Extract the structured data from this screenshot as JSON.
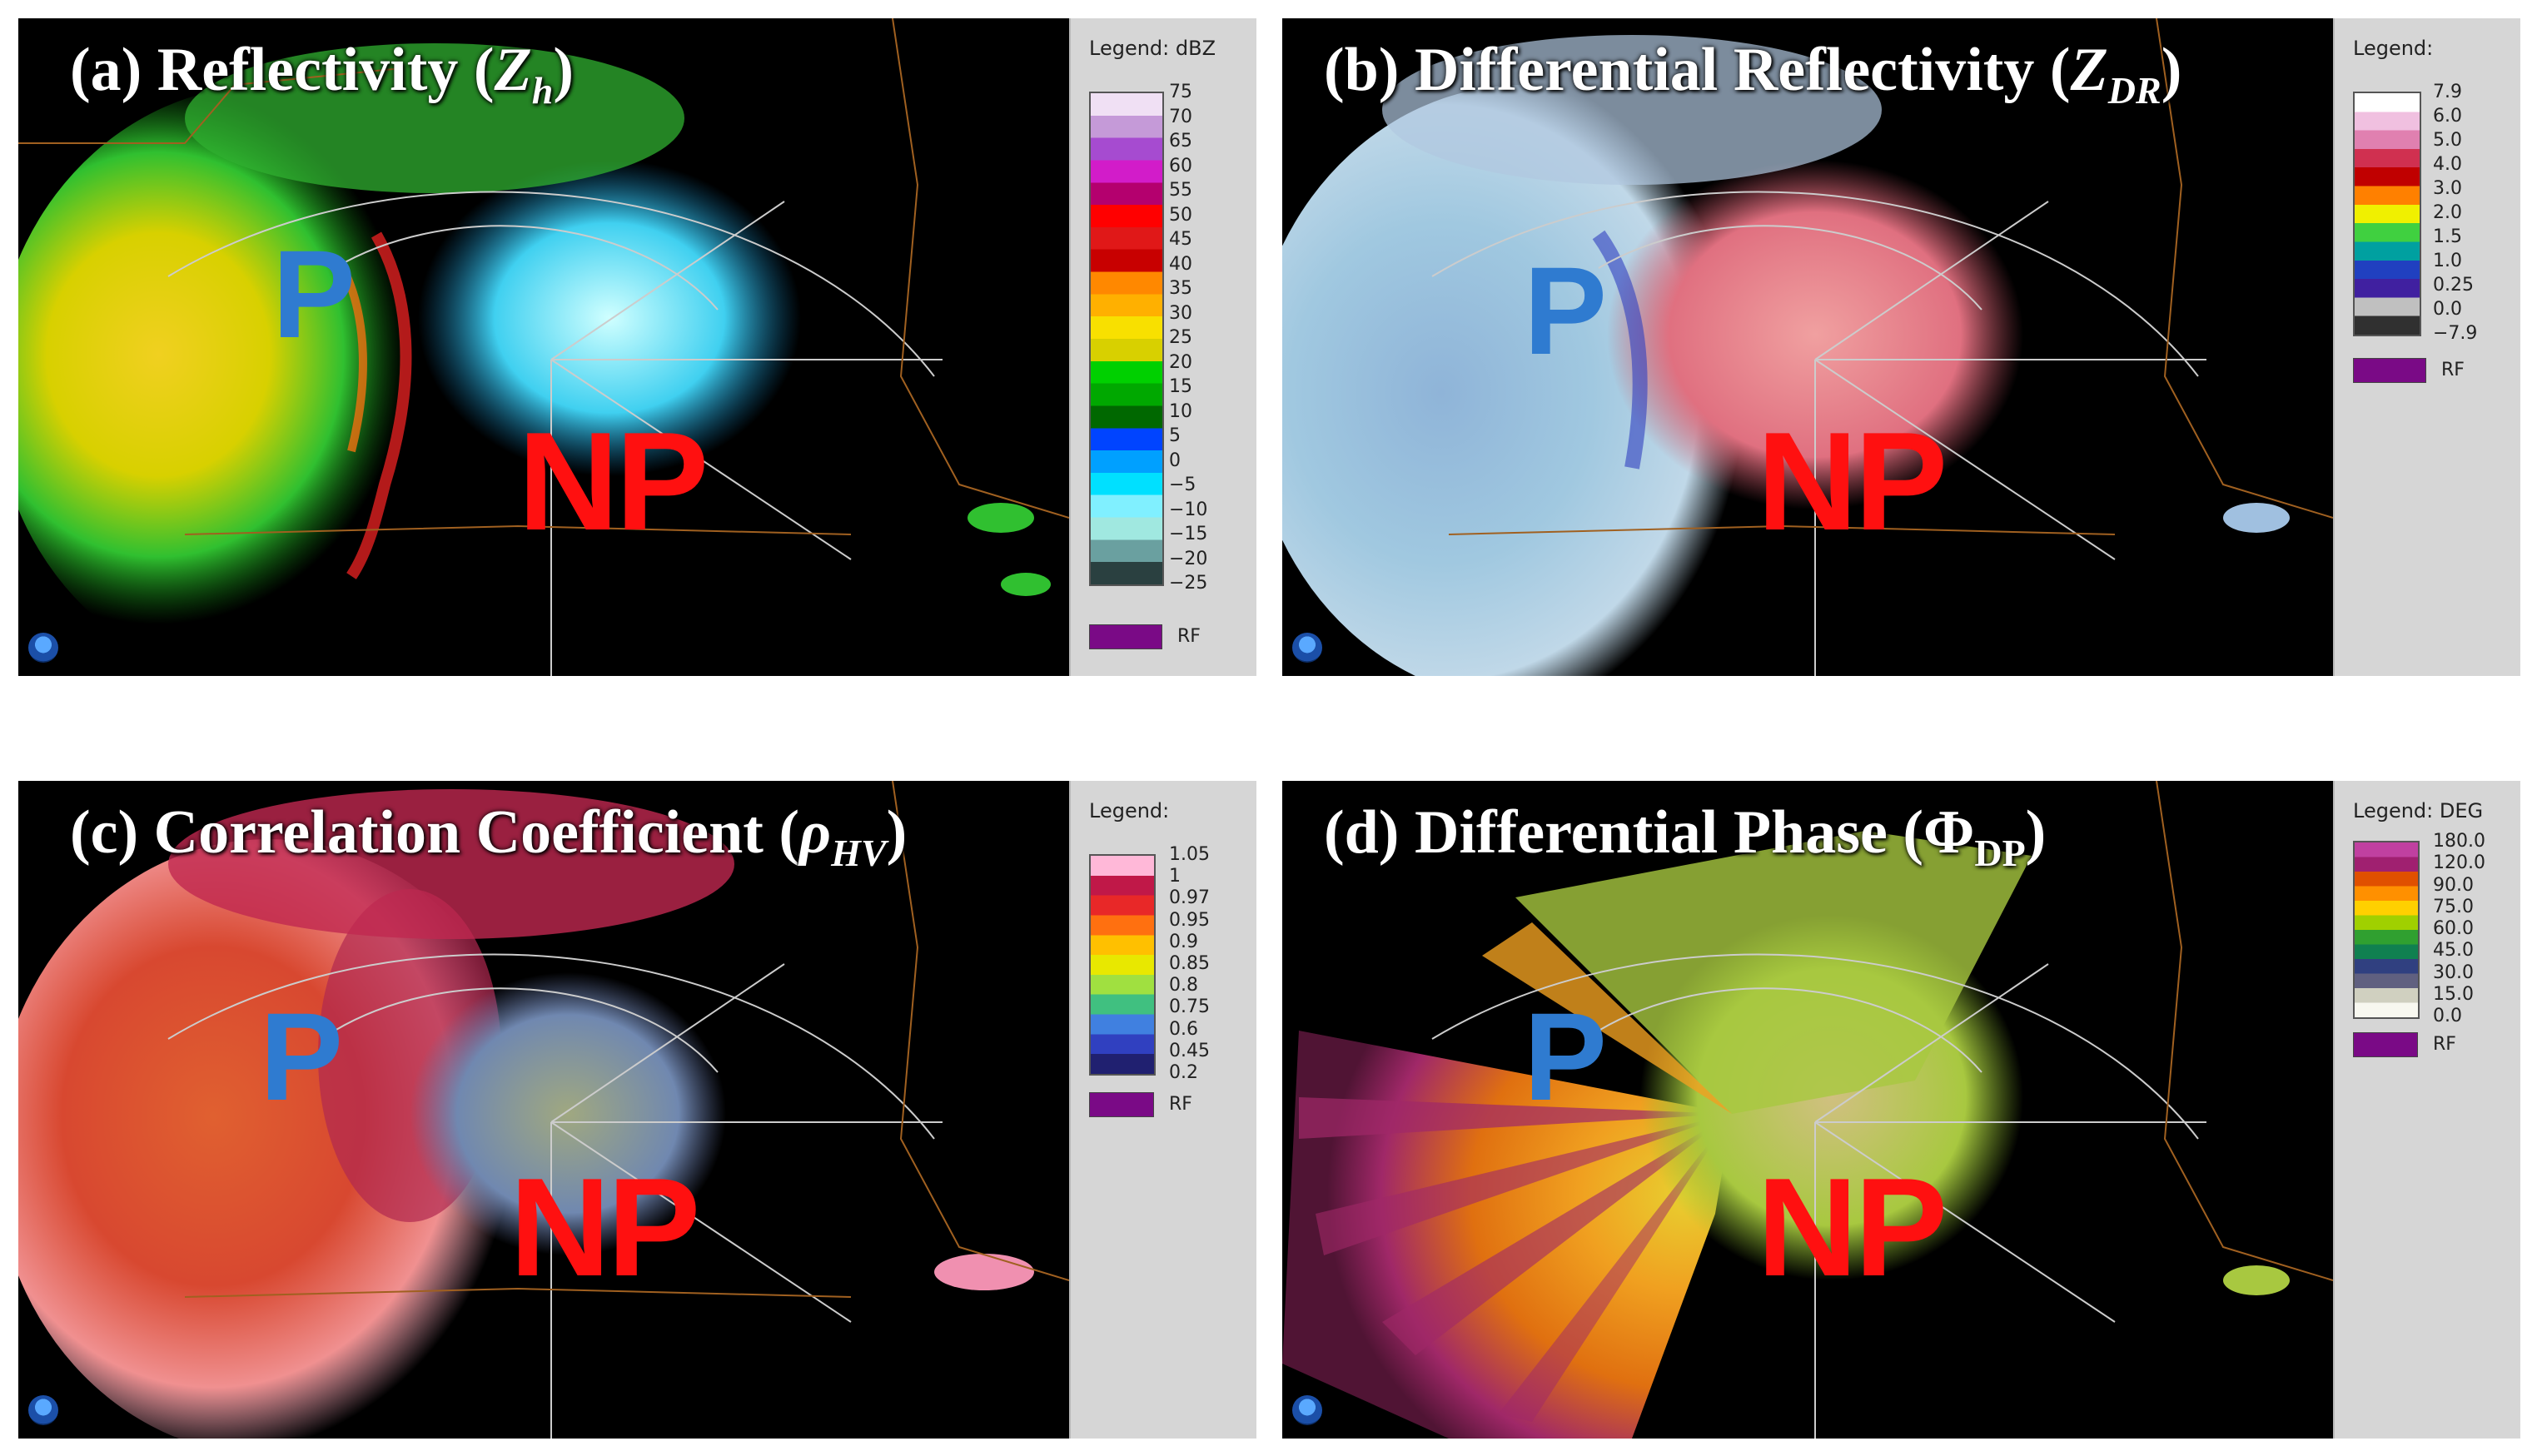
{
  "panels": [
    {
      "id": "a",
      "title_prefix": "(a) Reflectivity (",
      "title_symbol": "Z",
      "title_sub": "h",
      "title_suffix": ")",
      "region_p": "P",
      "region_np": "NP",
      "legend_title": "Legend: dBZ",
      "ticks": [
        "75",
        "70",
        "65",
        "60",
        "55",
        "50",
        "45",
        "40",
        "35",
        "30",
        "25",
        "20",
        "15",
        "10",
        "5",
        "0",
        "−5",
        "−10",
        "−15",
        "−20",
        "−25"
      ],
      "colors": [
        "#f0e0f4",
        "#c59ad8",
        "#a64bd0",
        "#d21cc9",
        "#b4006e",
        "#ff0000",
        "#e01818",
        "#c80000",
        "#ff8800",
        "#ffb000",
        "#f8e000",
        "#d8d000",
        "#00d000",
        "#00a800",
        "#006800",
        "#0044ff",
        "#00a0ff",
        "#00e0ff",
        "#80f0ff",
        "#a0e8e0",
        "#6aa0a0",
        "#2a4040"
      ],
      "rf_label": "RF"
    },
    {
      "id": "b",
      "title_prefix": "(b) Differential Reflectivity (",
      "title_symbol": "Z",
      "title_sub": "DR",
      "title_suffix": ")",
      "region_p": "P",
      "region_np": "NP",
      "legend_title": "Legend:",
      "ticks": [
        "7.9",
        "6.0",
        "5.0",
        "4.0",
        "3.0",
        "2.0",
        "1.5",
        "1.0",
        "0.25",
        "0.0",
        "−7.9"
      ],
      "colors": [
        "#ffffff",
        "#f0c0e0",
        "#e080b0",
        "#d03050",
        "#c00000",
        "#ff8000",
        "#f0f000",
        "#40d040",
        "#00a0a0",
        "#2040c0",
        "#4020a0",
        "#c0c0c0",
        "#303030"
      ],
      "rf_label": "RF"
    },
    {
      "id": "c",
      "title_prefix": "(c) Correlation Coefficient (",
      "title_symbol": "ρ",
      "title_sub": "HV",
      "title_suffix": ")",
      "region_p": "P",
      "region_np": "NP",
      "legend_title": "Legend:",
      "ticks": [
        "1.05",
        "1",
        "0.97",
        "0.95",
        "0.9",
        "0.85",
        "0.8",
        "0.75",
        "0.6",
        "0.45",
        "0.2"
      ],
      "colors": [
        "#ffb8d8",
        "#c01848",
        "#e82828",
        "#ff7010",
        "#ffc000",
        "#e8e800",
        "#a0e040",
        "#40c080",
        "#4080e0",
        "#3040c0",
        "#202070"
      ],
      "rf_label": "RF"
    },
    {
      "id": "d",
      "title_prefix": "(d) Differential Phase (",
      "title_symbol": "Φ",
      "title_sub": "DP",
      "title_suffix": ")",
      "region_p": "P",
      "region_np": "NP",
      "legend_title": "Legend: DEG",
      "ticks": [
        "180.0",
        "120.0",
        "90.0",
        "75.0",
        "60.0",
        "45.0",
        "30.0",
        "15.0",
        "0.0"
      ],
      "colors": [
        "#c040a0",
        "#a02070",
        "#e05000",
        "#ff9000",
        "#ffd000",
        "#a0d000",
        "#30a030",
        "#108050",
        "#304080",
        "#606080",
        "#d0d0c0",
        "#f8f8f0"
      ],
      "rf_label": "RF"
    }
  ]
}
